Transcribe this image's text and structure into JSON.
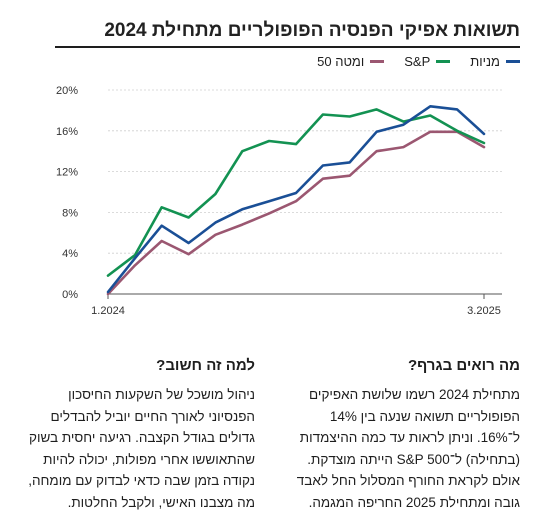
{
  "header": {
    "title": "תשואות אפיקי הפנסיה הפופולריים מתחילת 2024"
  },
  "chart_data": {
    "type": "line",
    "title": "תשואות אפיקי הפנסיה הפופולריים מתחילת 2024",
    "xlabel": "",
    "ylabel": "",
    "ylim": [
      0,
      20
    ],
    "yticks": [
      0,
      4,
      8,
      12,
      16,
      20
    ],
    "ytick_labels": [
      "0%",
      "4%",
      "8%",
      "12%",
      "16%",
      "20%"
    ],
    "x_labels": [
      "1.2024",
      "3.2025"
    ],
    "x": [
      "1.2024",
      "2.2024",
      "3.2024",
      "4.2024",
      "5.2024",
      "6.2024",
      "7.2024",
      "8.2024",
      "9.2024",
      "10.2024",
      "11.2024",
      "12.2024",
      "1.2025",
      "2.2025",
      "3.2025"
    ],
    "grid": true,
    "legend_position": "top-right",
    "series": [
      {
        "name": "מניות",
        "color": "#1a4f96",
        "values": [
          0.2,
          3.5,
          6.7,
          5.0,
          7.0,
          8.3,
          9.1,
          9.9,
          12.6,
          12.9,
          15.9,
          16.6,
          18.4,
          18.1,
          15.7
        ]
      },
      {
        "name": "S&P",
        "color": "#139252",
        "values": [
          1.8,
          3.8,
          8.5,
          7.5,
          9.8,
          14.0,
          15.0,
          14.7,
          17.6,
          17.4,
          18.1,
          16.9,
          17.5,
          16.0,
          14.8
        ]
      },
      {
        "name": "50 ומטה",
        "color": "#9b5771",
        "values": [
          0.0,
          2.8,
          5.2,
          3.9,
          5.8,
          6.8,
          7.9,
          9.1,
          11.3,
          11.6,
          14.0,
          14.4,
          15.9,
          15.9,
          14.4
        ]
      }
    ]
  },
  "sections": {
    "right": {
      "title": "מה רואים בגרף?",
      "lines": [
        "מתחילת 2024 רשמו שלושת האפיקים",
        "הפופולריים תשואה שנעה בין 14%",
        "ל־16%. וניתן לראות עד כמה ההיצמדות",
        "(בתחילה) ל־S&P 500 הייתה מוצדקת.",
        "אולם לקראת החורף המסלול החל לאבד",
        "גובה ומתחילת 2025 החריפה המגמה."
      ]
    },
    "left": {
      "title": "למה זה חשוב?",
      "lines": [
        "ניהול מושכל של השקעות החיסכון",
        "הפנסיוני לאורך החיים יוביל להבדלים",
        "גדולים בגודל הקצבה. רגיעה יחסית בשוק",
        "שהתאוששו אחרי מפולות, יכולה להיות",
        "נקודה בזמן שבה כדאי לבדוק עם מומחה,",
        "מה מצבנו האישי, ולקבל החלטות."
      ]
    }
  }
}
